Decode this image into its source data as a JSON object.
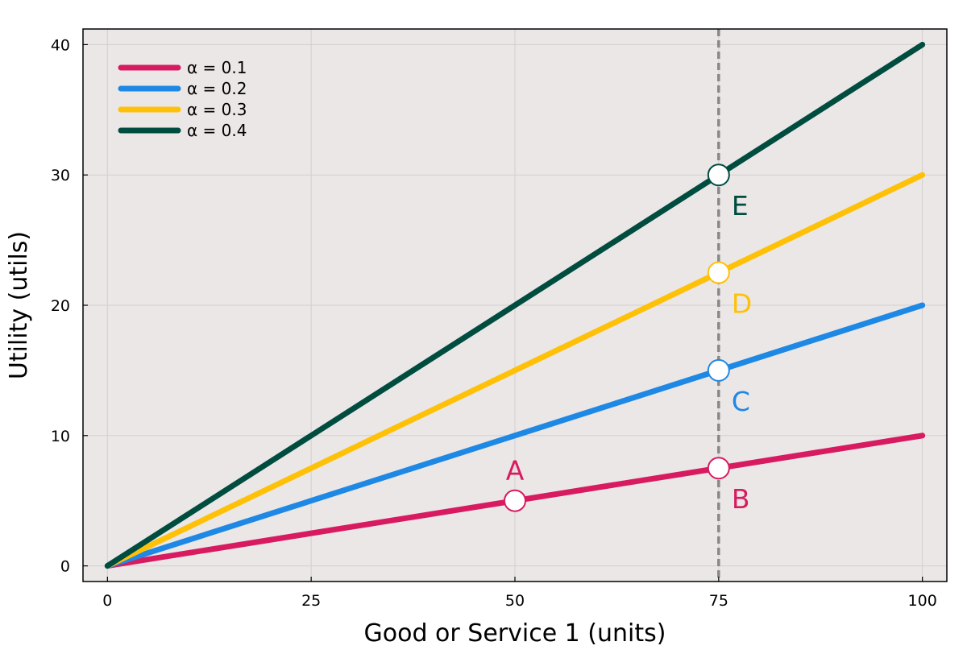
{
  "chart_data": {
    "type": "line",
    "xlabel": "Good or Service 1 (units)",
    "ylabel": "Utility (utils)",
    "xlim": [
      -3,
      103
    ],
    "ylim": [
      -1.2,
      41.2
    ],
    "xticks": [
      0,
      25,
      50,
      75,
      100
    ],
    "yticks": [
      0,
      10,
      20,
      30,
      40
    ],
    "grid": true,
    "legend_position": "top-left",
    "series": [
      {
        "name": "α = 0.1",
        "color": "#d81b60",
        "x": [
          0,
          100
        ],
        "y": [
          0,
          10
        ]
      },
      {
        "name": "α = 0.2",
        "color": "#1e88e5",
        "x": [
          0,
          100
        ],
        "y": [
          0,
          20
        ]
      },
      {
        "name": "α = 0.3",
        "color": "#ffc107",
        "x": [
          0,
          100
        ],
        "y": [
          0,
          30
        ]
      },
      {
        "name": "α = 0.4",
        "color": "#004d40",
        "x": [
          0,
          100
        ],
        "y": [
          0,
          40
        ]
      }
    ],
    "reference_line": {
      "orientation": "vertical",
      "x": 75,
      "style": "dashed",
      "color": "#888888"
    },
    "points": [
      {
        "label": "A",
        "x": 50,
        "y": 5,
        "color": "#d81b60",
        "label_pos": "above"
      },
      {
        "label": "B",
        "x": 75,
        "y": 7.5,
        "color": "#d81b60",
        "label_pos": "below-right"
      },
      {
        "label": "C",
        "x": 75,
        "y": 15,
        "color": "#1e88e5",
        "label_pos": "below-right"
      },
      {
        "label": "D",
        "x": 75,
        "y": 22.5,
        "color": "#ffc107",
        "label_pos": "below-right"
      },
      {
        "label": "E",
        "x": 75,
        "y": 30,
        "color": "#004d40",
        "label_pos": "below-right"
      }
    ],
    "plot_background": "#ebe7e7"
  }
}
